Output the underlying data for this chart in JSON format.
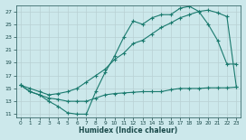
{
  "xlabel": "Humidex (Indice chaleur)",
  "bg_color": "#cce8eb",
  "line_color": "#1a7a6e",
  "grid_color": "#b8d8dc",
  "xlim": [
    -0.5,
    23.5
  ],
  "ylim": [
    10.5,
    28.0
  ],
  "xticks": [
    0,
    1,
    2,
    3,
    4,
    5,
    6,
    7,
    8,
    9,
    10,
    11,
    12,
    13,
    14,
    15,
    16,
    17,
    18,
    19,
    20,
    21,
    22,
    23
  ],
  "yticks": [
    11,
    13,
    15,
    17,
    19,
    21,
    23,
    25,
    27
  ],
  "line1_x": [
    0,
    1,
    2,
    3,
    4,
    5,
    6,
    7,
    8,
    9,
    10,
    11,
    12,
    13,
    14,
    15,
    16,
    17,
    18,
    19,
    20,
    21,
    22,
    23
  ],
  "line1_y": [
    15.5,
    14.5,
    14.0,
    13.0,
    12.2,
    11.2,
    11.0,
    11.0,
    14.5,
    17.5,
    20.0,
    23.0,
    25.5,
    25.0,
    26.0,
    26.5,
    26.5,
    27.5,
    27.8,
    27.0,
    25.0,
    22.5,
    18.8,
    18.8
  ],
  "line2_x": [
    0,
    1,
    2,
    3,
    4,
    5,
    6,
    7,
    8,
    9,
    10,
    11,
    12,
    13,
    14,
    15,
    16,
    17,
    18,
    19,
    20,
    21,
    22,
    23
  ],
  "line2_y": [
    15.5,
    15.0,
    14.5,
    14.0,
    14.2,
    14.5,
    15.0,
    16.0,
    17.0,
    18.0,
    19.5,
    20.5,
    22.0,
    22.5,
    23.5,
    24.5,
    25.2,
    26.0,
    26.5,
    27.0,
    27.2,
    26.8,
    26.2,
    15.3
  ],
  "line3_x": [
    0,
    1,
    2,
    3,
    4,
    5,
    6,
    7,
    8,
    9,
    10,
    11,
    12,
    13,
    14,
    15,
    16,
    17,
    18,
    19,
    20,
    21,
    22,
    23
  ],
  "line3_y": [
    15.5,
    14.5,
    14.0,
    13.5,
    13.3,
    13.0,
    13.0,
    13.0,
    13.5,
    14.0,
    14.2,
    14.3,
    14.4,
    14.5,
    14.5,
    14.5,
    14.8,
    15.0,
    15.0,
    15.0,
    15.1,
    15.1,
    15.1,
    15.2
  ]
}
